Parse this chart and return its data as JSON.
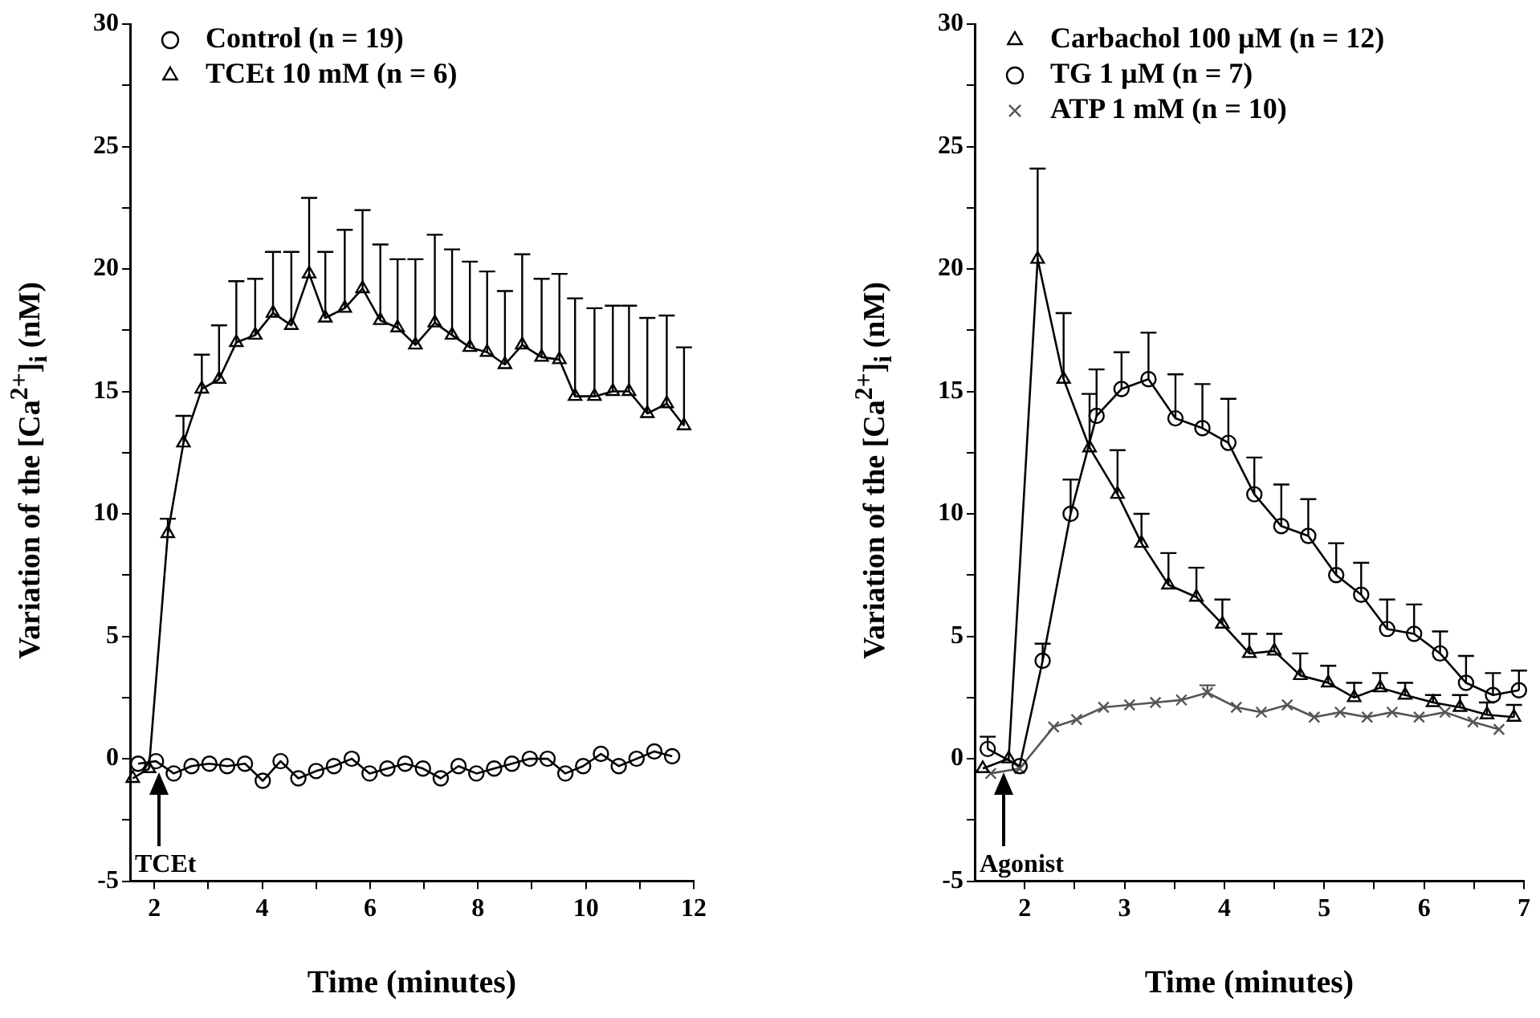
{
  "chart_data": [
    {
      "type": "line",
      "xlabel": "Time (minutes)",
      "ylabel": "Variation of the [Ca$^{2+}$]$_{i}$ (nM)",
      "xlim": [
        1.55,
        12
      ],
      "xticks": [
        2,
        {
          "value": 3,
          "label": null
        },
        4,
        {
          "value": 5,
          "label": null
        },
        6,
        {
          "value": 7,
          "label": null
        },
        8,
        {
          "value": 9,
          "label": null
        },
        10,
        {
          "value": 11,
          "label": null
        },
        12
      ],
      "ylim": [
        -5,
        30
      ],
      "yticks": [
        -5,
        {
          "value": -2.5,
          "label": null
        },
        0,
        {
          "value": 2.5,
          "label": null
        },
        5,
        {
          "value": 7.5,
          "label": null
        },
        10,
        {
          "value": 12.5,
          "label": null
        },
        15,
        {
          "value": 17.5,
          "label": null
        },
        20,
        {
          "value": 22.5,
          "label": null
        },
        25,
        {
          "value": 27.5,
          "label": null
        },
        30
      ],
      "grid": false,
      "legend": "top left",
      "line_style": "solid",
      "annotations": [
        "TCEt"
      ],
      "series": [
        {
          "name": "Control (n = 19)",
          "color": "#000000",
          "marker": "circle",
          "x": [
            1.7,
            2.03,
            2.36,
            2.69,
            3.02,
            3.35,
            3.68,
            4.01,
            4.34,
            4.67,
            5.0,
            5.33,
            5.66,
            5.99,
            6.32,
            6.65,
            6.98,
            7.31,
            7.64,
            7.97,
            8.3,
            8.63,
            8.96,
            9.29,
            9.62,
            9.95,
            10.28,
            10.61,
            10.94,
            11.27,
            11.6
          ],
          "values": [
            -0.2,
            -0.1,
            -0.6,
            -0.3,
            -0.2,
            -0.3,
            -0.2,
            -0.9,
            -0.1,
            -0.8,
            -0.5,
            -0.3,
            0,
            -0.6,
            -0.4,
            -0.2,
            -0.4,
            -0.8,
            -0.3,
            -0.6,
            -0.4,
            -0.2,
            0,
            0,
            -0.6,
            -0.3,
            0.2,
            -0.3,
            0,
            0.3,
            0.1
          ]
        },
        {
          "name": "TCEt 10 mM (n = 6)",
          "color": "#000000",
          "marker": "triangle",
          "x": [
            1.6,
            1.9,
            2.25,
            2.54,
            2.88,
            3.2,
            3.52,
            3.87,
            4.2,
            4.54,
            4.87,
            5.17,
            5.53,
            5.86,
            6.19,
            6.51,
            6.84,
            7.2,
            7.52,
            7.85,
            8.17,
            8.5,
            8.82,
            9.18,
            9.51,
            9.8,
            10.16,
            10.5,
            10.8,
            11.14,
            11.5,
            11.82
          ],
          "values": [
            -0.8,
            -0.4,
            9.2,
            12.9,
            15.1,
            15.5,
            17.0,
            17.3,
            18.2,
            17.7,
            19.8,
            18.0,
            18.4,
            19.2,
            17.9,
            17.6,
            16.9,
            17.8,
            17.3,
            16.8,
            16.6,
            16.1,
            16.9,
            16.4,
            16.3,
            14.8,
            14.8,
            15.0,
            15.0,
            14.1,
            14.5,
            13.6
          ],
          "errors": [
            null,
            null,
            [
              9.2,
              9.8
            ],
            [
              12.9,
              14.0
            ],
            [
              15.1,
              16.5
            ],
            [
              15.5,
              17.7
            ],
            [
              17.0,
              19.5
            ],
            [
              17.3,
              19.6
            ],
            [
              18.2,
              20.7
            ],
            [
              17.7,
              20.7
            ],
            [
              19.8,
              22.9
            ],
            [
              18.0,
              20.7
            ],
            [
              18.4,
              21.6
            ],
            [
              19.2,
              22.4
            ],
            [
              17.9,
              21.0
            ],
            [
              17.6,
              20.4
            ],
            [
              16.9,
              20.4
            ],
            [
              17.8,
              21.4
            ],
            [
              17.3,
              20.8
            ],
            [
              16.8,
              20.3
            ],
            [
              16.6,
              19.9
            ],
            [
              16.1,
              19.1
            ],
            [
              16.9,
              20.6
            ],
            [
              16.4,
              19.6
            ],
            [
              16.3,
              19.8
            ],
            [
              14.8,
              18.8
            ],
            [
              14.8,
              18.4
            ],
            [
              15.0,
              18.5
            ],
            [
              15.0,
              18.5
            ],
            [
              14.1,
              18.0
            ],
            [
              14.5,
              18.1
            ],
            [
              13.6,
              16.8
            ]
          ]
        }
      ]
    },
    {
      "type": "line",
      "xlabel": "Time (minutes)",
      "ylabel": "Variation of the [Ca$^{2+}$]$_{i}$ (nM)",
      "xlim": [
        1.5,
        7
      ],
      "xticks": [
        2,
        {
          "value": 2.5,
          "label": null
        },
        3,
        {
          "value": 3.5,
          "label": null
        },
        4,
        {
          "value": 4.5,
          "label": null
        },
        5,
        {
          "value": 5.5,
          "label": null
        },
        6,
        {
          "value": 6.5,
          "label": null
        },
        7
      ],
      "ylim": [
        -5,
        30
      ],
      "yticks": [
        -5,
        {
          "value": -2.5,
          "label": null
        },
        0,
        {
          "value": 2.5,
          "label": null
        },
        5,
        {
          "value": 7.5,
          "label": null
        },
        10,
        {
          "value": 12.5,
          "label": null
        },
        15,
        {
          "value": 17.5,
          "label": null
        },
        20,
        {
          "value": 22.5,
          "label": null
        },
        25,
        {
          "value": 27.5,
          "label": null
        },
        30
      ],
      "grid": false,
      "legend": "top left",
      "line_style": "solid",
      "annotations": [
        "Agonist"
      ],
      "series": [
        {
          "name": "Carbachol 100 µM (n = 12)",
          "color": "#000000",
          "marker": "triangle",
          "x": [
            1.58,
            1.84,
            2.13,
            2.39,
            2.65,
            2.93,
            3.17,
            3.44,
            3.72,
            3.98,
            4.25,
            4.5,
            4.76,
            5.04,
            5.3,
            5.56,
            5.81,
            6.09,
            6.36,
            6.63,
            6.9
          ],
          "values": [
            -0.4,
            0,
            20.4,
            15.5,
            12.7,
            10.8,
            8.8,
            7.1,
            6.6,
            5.5,
            4.3,
            4.4,
            3.4,
            3.1,
            2.5,
            2.9,
            2.6,
            2.3,
            2.1,
            1.8,
            1.7
          ],
          "errors": [
            null,
            null,
            [
              20.4,
              24.1
            ],
            [
              15.5,
              18.2
            ],
            [
              12.7,
              14.9
            ],
            [
              10.8,
              12.6
            ],
            [
              8.8,
              10.0
            ],
            [
              7.1,
              8.4
            ],
            [
              6.6,
              7.8
            ],
            [
              5.5,
              6.5
            ],
            [
              4.3,
              5.1
            ],
            [
              4.4,
              5.1
            ],
            [
              3.4,
              4.3
            ],
            [
              3.1,
              3.8
            ],
            [
              2.5,
              3.1
            ],
            [
              2.9,
              3.5
            ],
            [
              2.6,
              3.1
            ],
            [
              2.3,
              2.6
            ],
            [
              2.1,
              2.6
            ],
            [
              1.8,
              2.3
            ],
            [
              1.7,
              2.2
            ]
          ]
        },
        {
          "name": "TG 1 µM (n = 7)",
          "color": "#000000",
          "marker": "circle",
          "x": [
            1.63,
            1.95,
            2.18,
            2.46,
            2.72,
            2.97,
            3.24,
            3.51,
            3.78,
            4.04,
            4.3,
            4.57,
            4.84,
            5.12,
            5.37,
            5.63,
            5.9,
            6.16,
            6.42,
            6.69,
            6.95
          ],
          "values": [
            0.4,
            -0.3,
            4.0,
            10.0,
            14.0,
            15.1,
            15.5,
            13.9,
            13.5,
            12.9,
            10.8,
            9.5,
            9.1,
            7.5,
            6.7,
            5.3,
            5.1,
            4.3,
            3.1,
            2.6,
            2.8
          ],
          "errors": [
            [
              0.4,
              0.9
            ],
            null,
            [
              4.0,
              4.7
            ],
            [
              10.0,
              11.4
            ],
            [
              14.0,
              15.9
            ],
            [
              15.1,
              16.6
            ],
            [
              15.5,
              17.4
            ],
            [
              13.9,
              15.7
            ],
            [
              13.5,
              15.3
            ],
            [
              12.9,
              14.7
            ],
            [
              10.8,
              12.3
            ],
            [
              9.5,
              11.2
            ],
            [
              9.1,
              10.6
            ],
            [
              7.5,
              8.8
            ],
            [
              6.7,
              8.0
            ],
            [
              5.3,
              6.5
            ],
            [
              5.1,
              6.3
            ],
            [
              4.3,
              5.2
            ],
            [
              3.1,
              4.2
            ],
            [
              2.6,
              3.5
            ],
            [
              2.8,
              3.6
            ]
          ]
        },
        {
          "name": "ATP 1 mM (n = 10)",
          "color": "#555555",
          "marker": "cross",
          "x": [
            1.66,
            1.95,
            2.29,
            2.52,
            2.79,
            3.05,
            3.31,
            3.57,
            3.83,
            4.12,
            4.37,
            4.63,
            4.9,
            5.16,
            5.43,
            5.68,
            5.95,
            6.21,
            6.49,
            6.75
          ],
          "values": [
            -0.6,
            -0.4,
            1.3,
            1.6,
            2.1,
            2.2,
            2.3,
            2.4,
            2.7,
            2.1,
            1.9,
            2.2,
            1.7,
            1.9,
            1.7,
            1.9,
            1.7,
            1.9,
            1.5,
            1.2
          ],
          "errors": [
            null,
            null,
            null,
            null,
            null,
            null,
            null,
            null,
            [
              2.7,
              3.0
            ],
            null,
            null,
            null,
            null,
            null,
            null,
            null,
            null,
            null,
            null,
            null
          ]
        }
      ]
    }
  ]
}
